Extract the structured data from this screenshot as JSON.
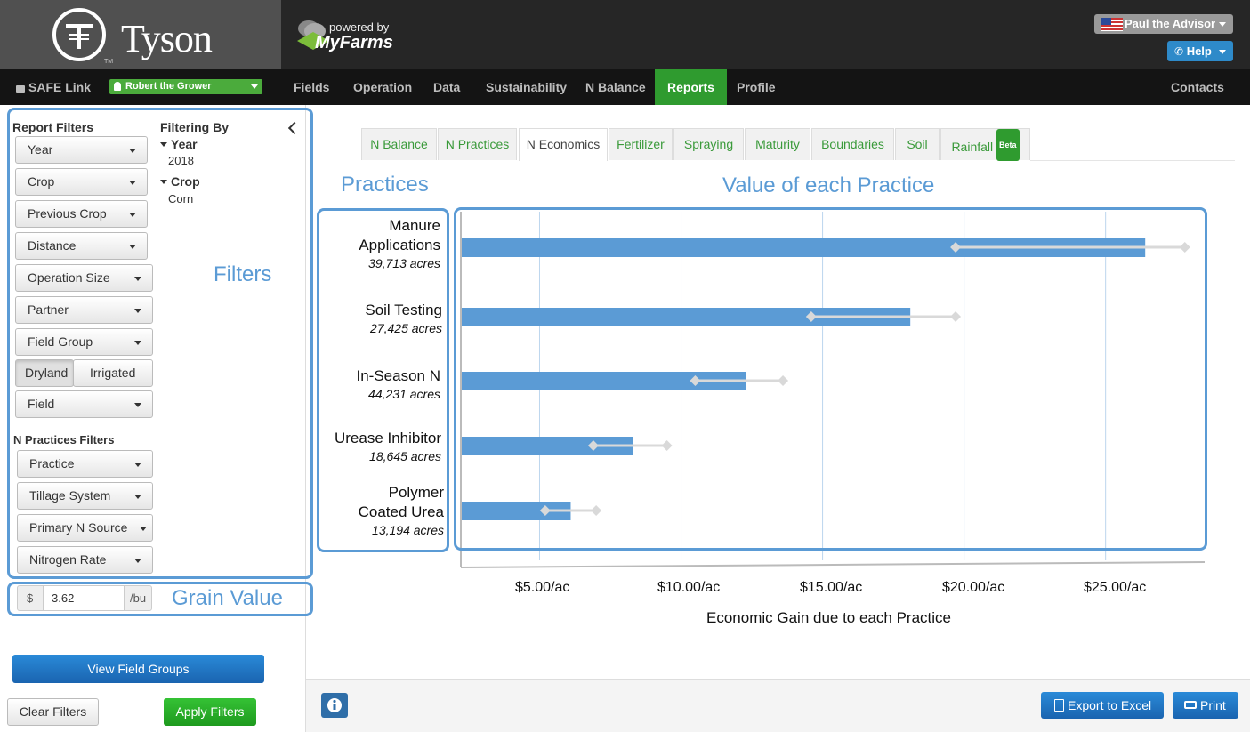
{
  "header": {
    "brand": "Tyson",
    "brand_tm": "TM",
    "powered_by": "powered by",
    "partner_brand": "MyFarms",
    "user": "Paul the Advisor",
    "help": "Help"
  },
  "nav": {
    "safe_link": "SAFE Link",
    "grower": "Robert the Grower",
    "items": [
      "Fields",
      "Operation",
      "Data",
      "Sustainability",
      "N Balance",
      "Reports",
      "Profile"
    ],
    "contacts": "Contacts"
  },
  "sidebar": {
    "report_filters_title": "Report Filters",
    "filters": [
      "Year",
      "Crop",
      "Previous Crop",
      "Distance",
      "Operation Size",
      "Partner",
      "Field Group"
    ],
    "water": [
      "Dryland",
      "Irrigated"
    ],
    "field": "Field",
    "filtering_by_title": "Filtering By",
    "filtering_by": [
      {
        "name": "Year",
        "value": "2018"
      },
      {
        "name": "Crop",
        "value": "Corn"
      }
    ],
    "n_practices_title": "N Practices Filters",
    "n_filters": [
      "Practice",
      "Tillage System",
      "Primary N Source",
      "Nitrogen Rate"
    ],
    "grain_currency": "$",
    "grain_value": "3.62",
    "grain_unit": "/bu",
    "view_field_groups": "View Field Groups",
    "clear_filters": "Clear Filters",
    "apply_filters": "Apply Filters"
  },
  "annotations": {
    "filters": "Filters",
    "grain_value": "Grain Value",
    "practices": "Practices",
    "value": "Value of each Practice"
  },
  "tabs": [
    "N Balance",
    "N Practices",
    "N Economics",
    "Fertilizer",
    "Spraying",
    "Maturity",
    "Boundaries",
    "Soil",
    "Rainfall"
  ],
  "tab_badge": "Beta",
  "active_tab": "N Economics",
  "footer": {
    "export": "Export to Excel",
    "print": "Print"
  },
  "chart_data": {
    "type": "bar",
    "orientation": "horizontal",
    "xlabel": "Economic Gain due to each Practice",
    "ylabel": "",
    "xlim": [
      2.25,
      28.5
    ],
    "ticks": [
      5,
      10,
      15,
      20,
      25
    ],
    "tick_labels": [
      "$5.00/ac",
      "$10.00/ac",
      "$15.00/ac",
      "$20.00/ac",
      "$25.00/ac"
    ],
    "categories": [
      {
        "name": [
          "Manure",
          "Applications"
        ],
        "acres": "39,713 acres"
      },
      {
        "name": [
          "Soil Testing"
        ],
        "acres": "27,425 acres"
      },
      {
        "name": [
          "In-Season N"
        ],
        "acres": "44,231 acres"
      },
      {
        "name": [
          "Urease Inhibitor"
        ],
        "acres": "18,645 acres"
      },
      {
        "name": [
          "Polymer",
          "Coated Urea"
        ],
        "acres": "13,194 acres"
      }
    ],
    "values": [
      26.4,
      18.1,
      12.3,
      8.3,
      6.1
    ],
    "range_low": [
      19.7,
      14.6,
      10.5,
      6.9,
      5.2
    ],
    "range_high": [
      27.8,
      19.7,
      13.6,
      9.5,
      7.0
    ],
    "bar_color": "#5b9bd5",
    "range_color": "#d9d9d9"
  }
}
